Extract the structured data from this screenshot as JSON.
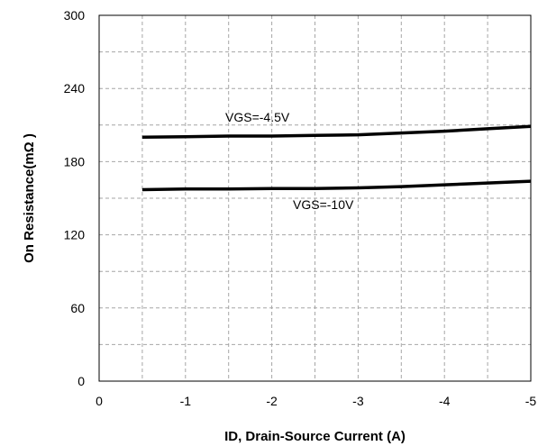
{
  "chart_data": {
    "type": "line",
    "xlabel": "ID, Drain-Source Current (A)",
    "ylabel": "On Resistance(mΩ )",
    "xlim": [
      0,
      -5
    ],
    "ylim": [
      0,
      300
    ],
    "x_ticks": [
      0,
      -1,
      -2,
      -3,
      -4,
      -5
    ],
    "x_tick_labels": [
      "0",
      "-1",
      "-2",
      "-3",
      "-4",
      "-5"
    ],
    "y_ticks": [
      0,
      60,
      120,
      180,
      240,
      300
    ],
    "y_tick_labels": [
      "0",
      "60",
      "120",
      "180",
      "240",
      "300"
    ],
    "grid": true,
    "grid_style": "dashed",
    "series": [
      {
        "name": "VGS=-4.5V",
        "color": "#000000",
        "x": [
          -0.5,
          -1,
          -1.5,
          -2,
          -2.5,
          -3,
          -3.5,
          -4,
          -4.5,
          -5
        ],
        "y": [
          200,
          200.5,
          201,
          201,
          201.5,
          202,
          203.5,
          205,
          207,
          209
        ]
      },
      {
        "name": "VGS=-10V",
        "color": "#000000",
        "x": [
          -0.5,
          -1,
          -1.5,
          -2,
          -2.5,
          -3,
          -3.5,
          -4,
          -4.5,
          -5
        ],
        "y": [
          157,
          157.5,
          157.5,
          158,
          158,
          158.5,
          159.5,
          161,
          162.5,
          164
        ]
      }
    ]
  }
}
